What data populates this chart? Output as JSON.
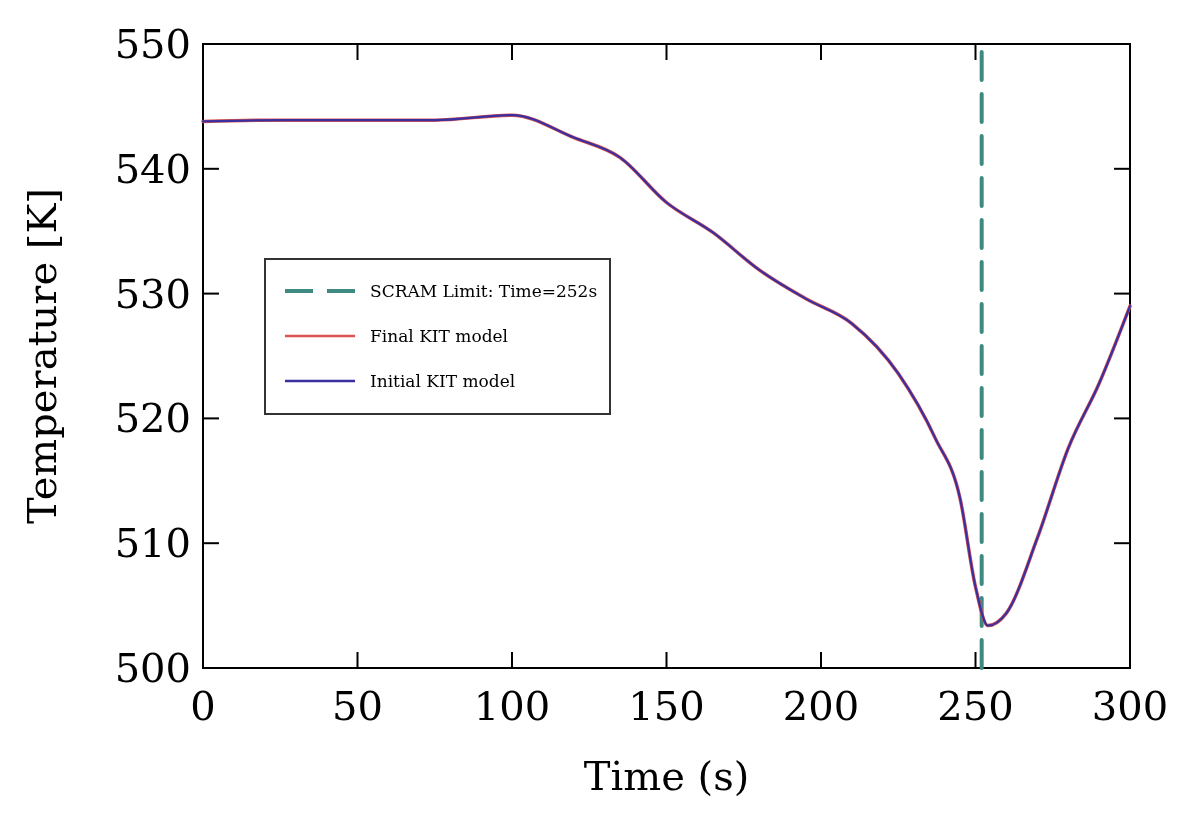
{
  "chart_data": {
    "type": "line",
    "xlabel": "Time (s)",
    "ylabel": "Temperature [K]",
    "xlim": [
      0,
      300
    ],
    "ylim": [
      500,
      550
    ],
    "xticks": [
      0,
      50,
      100,
      150,
      200,
      250,
      300
    ],
    "yticks": [
      500,
      510,
      520,
      530,
      540,
      550
    ],
    "x": [
      0,
      25,
      50,
      75,
      100,
      120,
      135,
      150,
      165,
      180,
      195,
      210,
      225,
      237,
      245,
      250,
      254,
      260,
      270,
      280,
      290,
      300
    ],
    "series": [
      {
        "name": "SCRAM Limit: Time=252s",
        "color": "#3f8a80",
        "line_style": "dashed",
        "x": [
          252,
          252
        ],
        "values": [
          500,
          550
        ]
      },
      {
        "name": "Final KIT model",
        "color": "#d9534f",
        "values": [
          543.8,
          543.9,
          543.9,
          543.9,
          544.3,
          542.5,
          540.9,
          537.3,
          534.9,
          531.9,
          529.6,
          527.6,
          523.6,
          518.4,
          513.6,
          506.5,
          503.4,
          504.4,
          510.4,
          517.6,
          522.8,
          529.0
        ]
      },
      {
        "name": "Initial KIT model",
        "color": "#3a2fa0",
        "values": [
          543.8,
          543.9,
          543.9,
          543.9,
          544.3,
          542.5,
          540.9,
          537.3,
          534.9,
          531.9,
          529.6,
          527.6,
          523.6,
          518.4,
          513.6,
          506.5,
          503.4,
          504.4,
          510.4,
          517.6,
          522.8,
          529.0
        ]
      }
    ],
    "legend": "left",
    "line_style": "solid",
    "grid": false
  }
}
